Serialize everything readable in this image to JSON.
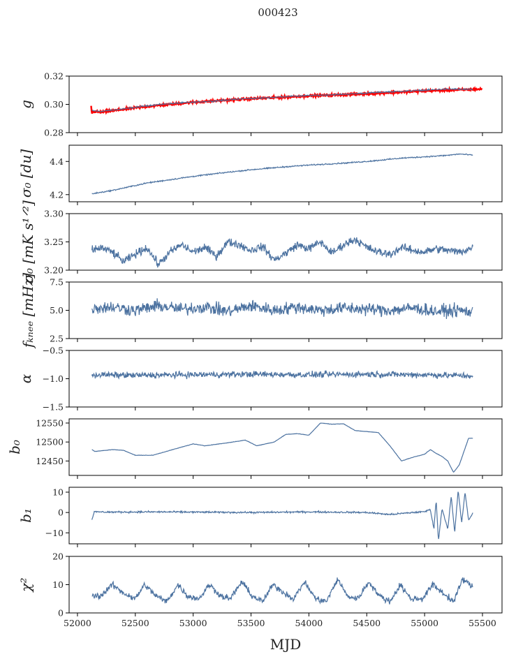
{
  "chart_data": {
    "type": "line",
    "title": "000423",
    "xlabel": "MJD",
    "xlim": [
      51928,
      55669
    ],
    "xticks": [
      52000,
      52500,
      53000,
      53500,
      54000,
      54500,
      55000,
      55500
    ],
    "line_color": "#4c72a0",
    "fit_color": "#ff0000",
    "panels": [
      {
        "ylabel": "g",
        "ylim": [
          0.28,
          0.32
        ],
        "yticks": [
          0.28,
          0.3,
          0.32
        ],
        "tick_decimals": 2,
        "noise": 0.0004,
        "x": [
          52125,
          52200,
          52400,
          52600,
          52800,
          53000,
          53200,
          53400,
          53600,
          53800,
          54000,
          54200,
          54400,
          54600,
          54800,
          55000,
          55200,
          55420
        ],
        "values": [
          0.2955,
          0.295,
          0.2968,
          0.299,
          0.3005,
          0.3015,
          0.3025,
          0.3038,
          0.3045,
          0.3055,
          0.3062,
          0.3068,
          0.3075,
          0.3085,
          0.3092,
          0.31,
          0.3108,
          0.3105
        ],
        "fit": {
          "noise": 0.0006,
          "x": [
            52118,
            52125,
            52130,
            52200,
            52600,
            53000,
            53500,
            54000,
            54500,
            55000,
            55500
          ],
          "values": [
            0.299,
            0.293,
            0.295,
            0.2945,
            0.2985,
            0.3015,
            0.304,
            0.306,
            0.3075,
            0.3095,
            0.3108
          ]
        }
      },
      {
        "ylabel": "σ₀ [du]",
        "ylim": [
          4.157,
          4.498
        ],
        "yticks": [
          4.2,
          4.4
        ],
        "tick_decimals": 1,
        "noise": 0.003,
        "x": [
          52125,
          52300,
          52600,
          52800,
          53000,
          53300,
          53500,
          53800,
          54000,
          54300,
          54500,
          54800,
          55000,
          55200,
          55300,
          55420
        ],
        "values": [
          4.205,
          4.225,
          4.27,
          4.29,
          4.31,
          4.335,
          4.35,
          4.368,
          4.378,
          4.39,
          4.4,
          4.42,
          4.428,
          4.437,
          4.445,
          4.438
        ]
      },
      {
        "ylabel": "σ₀ [mK s¹ᐟ²]",
        "ylim": [
          3.2,
          3.3
        ],
        "yticks": [
          3.2,
          3.25,
          3.3
        ],
        "tick_decimals": 2,
        "noise": 0.006,
        "x": [
          52125,
          52200,
          52300,
          52400,
          52500,
          52600,
          52700,
          52800,
          52900,
          53000,
          53100,
          53200,
          53300,
          53400,
          53500,
          53600,
          53700,
          53800,
          53900,
          54000,
          54100,
          54200,
          54300,
          54400,
          54500,
          54600,
          54700,
          54800,
          54900,
          55000,
          55100,
          55200,
          55300,
          55420
        ],
        "values": [
          3.235,
          3.24,
          3.232,
          3.215,
          3.228,
          3.24,
          3.21,
          3.232,
          3.245,
          3.232,
          3.24,
          3.225,
          3.25,
          3.245,
          3.235,
          3.242,
          3.218,
          3.23,
          3.245,
          3.238,
          3.25,
          3.23,
          3.245,
          3.255,
          3.24,
          3.232,
          3.228,
          3.24,
          3.235,
          3.232,
          3.238,
          3.235,
          3.232,
          3.24
        ]
      },
      {
        "ylabel": "fₖₙₑₑ [mHz]",
        "ylim": [
          2.5,
          7.5
        ],
        "yticks": [
          2.5,
          5.0,
          7.5
        ],
        "tick_decimals": 1,
        "noise": 0.45,
        "x": [
          52125,
          52300,
          52500,
          52700,
          52900,
          53100,
          53300,
          53500,
          53700,
          53900,
          54100,
          54300,
          54500,
          54700,
          54900,
          55100,
          55300,
          55420
        ],
        "values": [
          5.2,
          5.3,
          5.0,
          5.4,
          5.1,
          5.3,
          4.9,
          5.4,
          5.0,
          5.3,
          5.0,
          5.2,
          5.1,
          5.0,
          5.2,
          4.9,
          5.0,
          4.8
        ]
      },
      {
        "ylabel": "α",
        "ylim": [
          -1.5,
          -0.5
        ],
        "yticks": [
          -1.5,
          -1.0,
          -0.5
        ],
        "tick_decimals": 1,
        "noise": 0.045,
        "x": [
          52125,
          52500,
          53000,
          53500,
          54000,
          54500,
          55000,
          55420
        ],
        "values": [
          -0.93,
          -0.94,
          -0.93,
          -0.92,
          -0.93,
          -0.92,
          -0.93,
          -0.95
        ]
      },
      {
        "ylabel": "b₀",
        "ylim": [
          12412,
          12561
        ],
        "yticks": [
          12450,
          12500,
          12550
        ],
        "tick_decimals": 0,
        "noise": 0.4,
        "x": [
          52125,
          52150,
          52300,
          52400,
          52500,
          52650,
          52800,
          53000,
          53100,
          53300,
          53450,
          53550,
          53700,
          53800,
          53900,
          54000,
          54100,
          54200,
          54300,
          54400,
          54600,
          54700,
          54800,
          54900,
          55000,
          55050,
          55100,
          55150,
          55200,
          55250,
          55300,
          55380,
          55420
        ],
        "values": [
          12480,
          12475,
          12480,
          12478,
          12465,
          12465,
          12478,
          12495,
          12490,
          12498,
          12505,
          12490,
          12500,
          12520,
          12522,
          12518,
          12550,
          12547,
          12548,
          12530,
          12525,
          12490,
          12450,
          12460,
          12468,
          12480,
          12470,
          12462,
          12450,
          12420,
          12440,
          12510,
          12510
        ]
      },
      {
        "ylabel": "b₁",
        "ylim": [
          -15.4,
          12.4
        ],
        "yticks": [
          -10,
          0,
          10
        ],
        "tick_decimals": 0,
        "noise": 0.35,
        "x": [
          52125,
          52145,
          52300,
          52700,
          53000,
          53500,
          54000,
          54500,
          54700,
          54900,
          55000,
          55050,
          55080,
          55100,
          55120,
          55150,
          55200,
          55230,
          55260,
          55290,
          55320,
          55350,
          55380,
          55420
        ],
        "values": [
          -3.5,
          0.3,
          0.2,
          0.3,
          0.2,
          0.0,
          0.3,
          0.0,
          -1.0,
          0.0,
          0.4,
          1.5,
          -8,
          6,
          -14,
          2,
          -8,
          8,
          -10,
          11,
          -5,
          10,
          -4,
          0.2
        ]
      },
      {
        "ylabel": "χ²",
        "ylim": [
          0,
          20
        ],
        "yticks": [
          0,
          10,
          20
        ],
        "tick_decimals": 0,
        "noise": 0.9,
        "x": [
          52125,
          52200,
          52300,
          52400,
          52500,
          52580,
          52680,
          52770,
          52870,
          52950,
          53050,
          53140,
          53240,
          53320,
          53420,
          53510,
          53600,
          53690,
          53790,
          53870,
          53960,
          54060,
          54150,
          54250,
          54330,
          54420,
          54520,
          54610,
          54700,
          54790,
          54880,
          54980,
          55070,
          55160,
          55250,
          55330,
          55420
        ],
        "values": [
          6,
          6,
          10,
          7,
          5,
          10,
          6,
          4,
          10,
          6,
          5,
          10,
          6,
          5,
          11,
          6,
          4,
          10,
          7,
          5,
          11,
          5,
          4,
          12,
          6,
          5,
          11,
          6,
          4,
          10,
          5,
          5,
          10,
          7,
          4,
          12,
          9
        ]
      }
    ]
  }
}
